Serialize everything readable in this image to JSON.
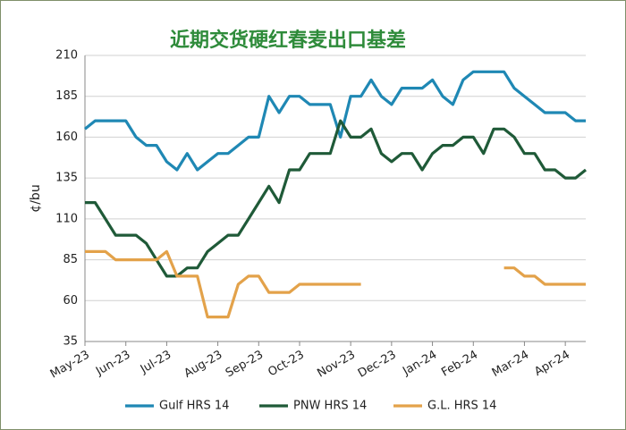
{
  "chart_data": {
    "type": "line",
    "title": "近期交货硬红春麦出口基差",
    "y_label": "¢/bu",
    "categories": [
      "May-23",
      null,
      null,
      null,
      "Jun-23",
      null,
      null,
      null,
      "Jul-23",
      null,
      null,
      null,
      null,
      "Aug-23",
      null,
      null,
      null,
      "Sep-23",
      null,
      null,
      null,
      "Oct-23",
      null,
      null,
      null,
      null,
      "Nov-23",
      null,
      null,
      null,
      "Dec-23",
      null,
      null,
      null,
      "Jan-24",
      null,
      null,
      null,
      "Feb-24",
      null,
      null,
      null,
      null,
      "Mar-24",
      null,
      null,
      null,
      "Apr-24",
      null,
      null
    ],
    "series": [
      {
        "name": "Gulf HRS 14",
        "color": "#1f88b4",
        "values": [
          165,
          170,
          170,
          170,
          170,
          160,
          155,
          155,
          145,
          140,
          150,
          140,
          145,
          150,
          150,
          155,
          160,
          160,
          185,
          175,
          185,
          185,
          180,
          180,
          180,
          160,
          185,
          185,
          195,
          185,
          180,
          190,
          190,
          190,
          195,
          185,
          180,
          195,
          200,
          200,
          200,
          200,
          190,
          185,
          180,
          175,
          175,
          175,
          170,
          170
        ]
      },
      {
        "name": "PNW HRS 14",
        "color": "#1f5a38",
        "values": [
          120,
          120,
          110,
          100,
          100,
          100,
          95,
          85,
          75,
          75,
          80,
          80,
          90,
          95,
          100,
          100,
          110,
          120,
          130,
          120,
          140,
          140,
          150,
          150,
          150,
          170,
          160,
          160,
          165,
          150,
          145,
          150,
          150,
          140,
          150,
          155,
          155,
          160,
          160,
          150,
          165,
          165,
          160,
          150,
          150,
          140,
          140,
          135,
          135,
          140
        ]
      },
      {
        "name": "G.L. HRS 14",
        "color": "#e3a24a",
        "values": [
          90,
          90,
          90,
          85,
          85,
          85,
          85,
          85,
          90,
          75,
          75,
          75,
          50,
          50,
          50,
          70,
          75,
          75,
          65,
          65,
          65,
          70,
          70,
          70,
          70,
          70,
          70,
          70,
          null,
          null,
          null,
          null,
          null,
          null,
          null,
          null,
          null,
          null,
          null,
          null,
          null,
          80,
          80,
          75,
          75,
          70,
          70,
          70,
          70,
          70
        ]
      }
    ],
    "ylim": [
      35,
      210
    ],
    "yticks": [
      35,
      60,
      85,
      110,
      135,
      160,
      185,
      210
    ],
    "grid": true,
    "legend": "bottom"
  }
}
